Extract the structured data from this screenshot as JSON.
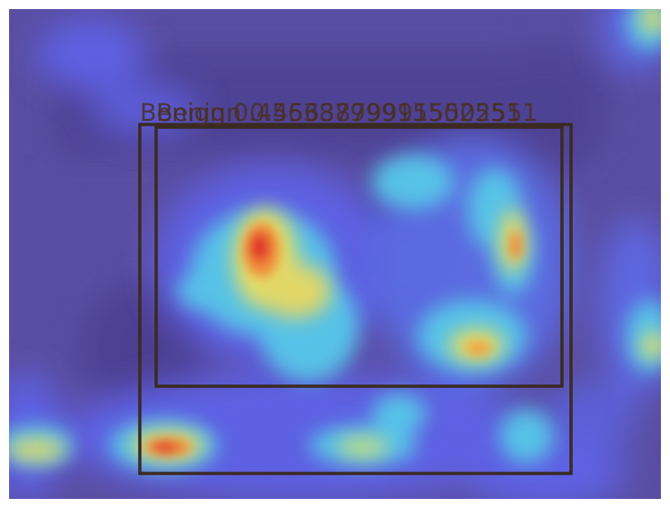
{
  "image": {
    "type": "heatmap-overlay-photo",
    "colormap": "jet",
    "colors": {
      "background": "#ffffff",
      "base": "#5a4ea2",
      "frame_stroke": "#3a2a22",
      "label_text": "#4a2f24"
    }
  },
  "detections": [
    {
      "label": "Benign",
      "score": "0.45638799915502551"
    },
    {
      "label": "Benign",
      "score": "0.45638799915502551"
    }
  ]
}
